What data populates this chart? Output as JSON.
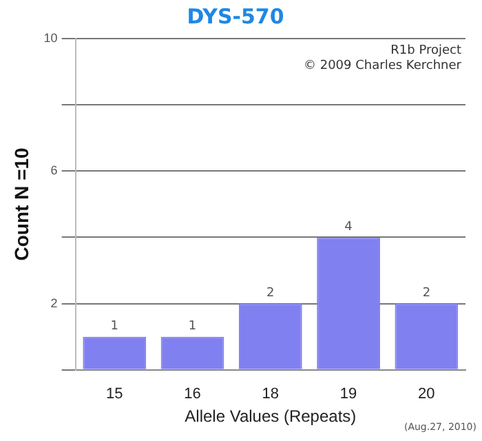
{
  "chart_data": {
    "type": "bar",
    "title": "DYS-570",
    "xlabel": "Allele Values (Repeats)",
    "ylabel": "Count N =10",
    "categories": [
      "15",
      "16",
      "18",
      "19",
      "20"
    ],
    "values": [
      1,
      1,
      2,
      4,
      2
    ],
    "color": "#8080f0",
    "ylim": [
      0,
      10
    ],
    "yticks": [
      {
        "value": 0,
        "label": null
      },
      2,
      {
        "value": 4,
        "label": null
      },
      6,
      {
        "value": 8,
        "label": null
      },
      10
    ],
    "grid": "y",
    "data_labels": true,
    "legend": false,
    "annotations": [
      "R1b Project",
      "© 2009 Charles Kerchner",
      "(Aug.27, 2010)"
    ]
  }
}
